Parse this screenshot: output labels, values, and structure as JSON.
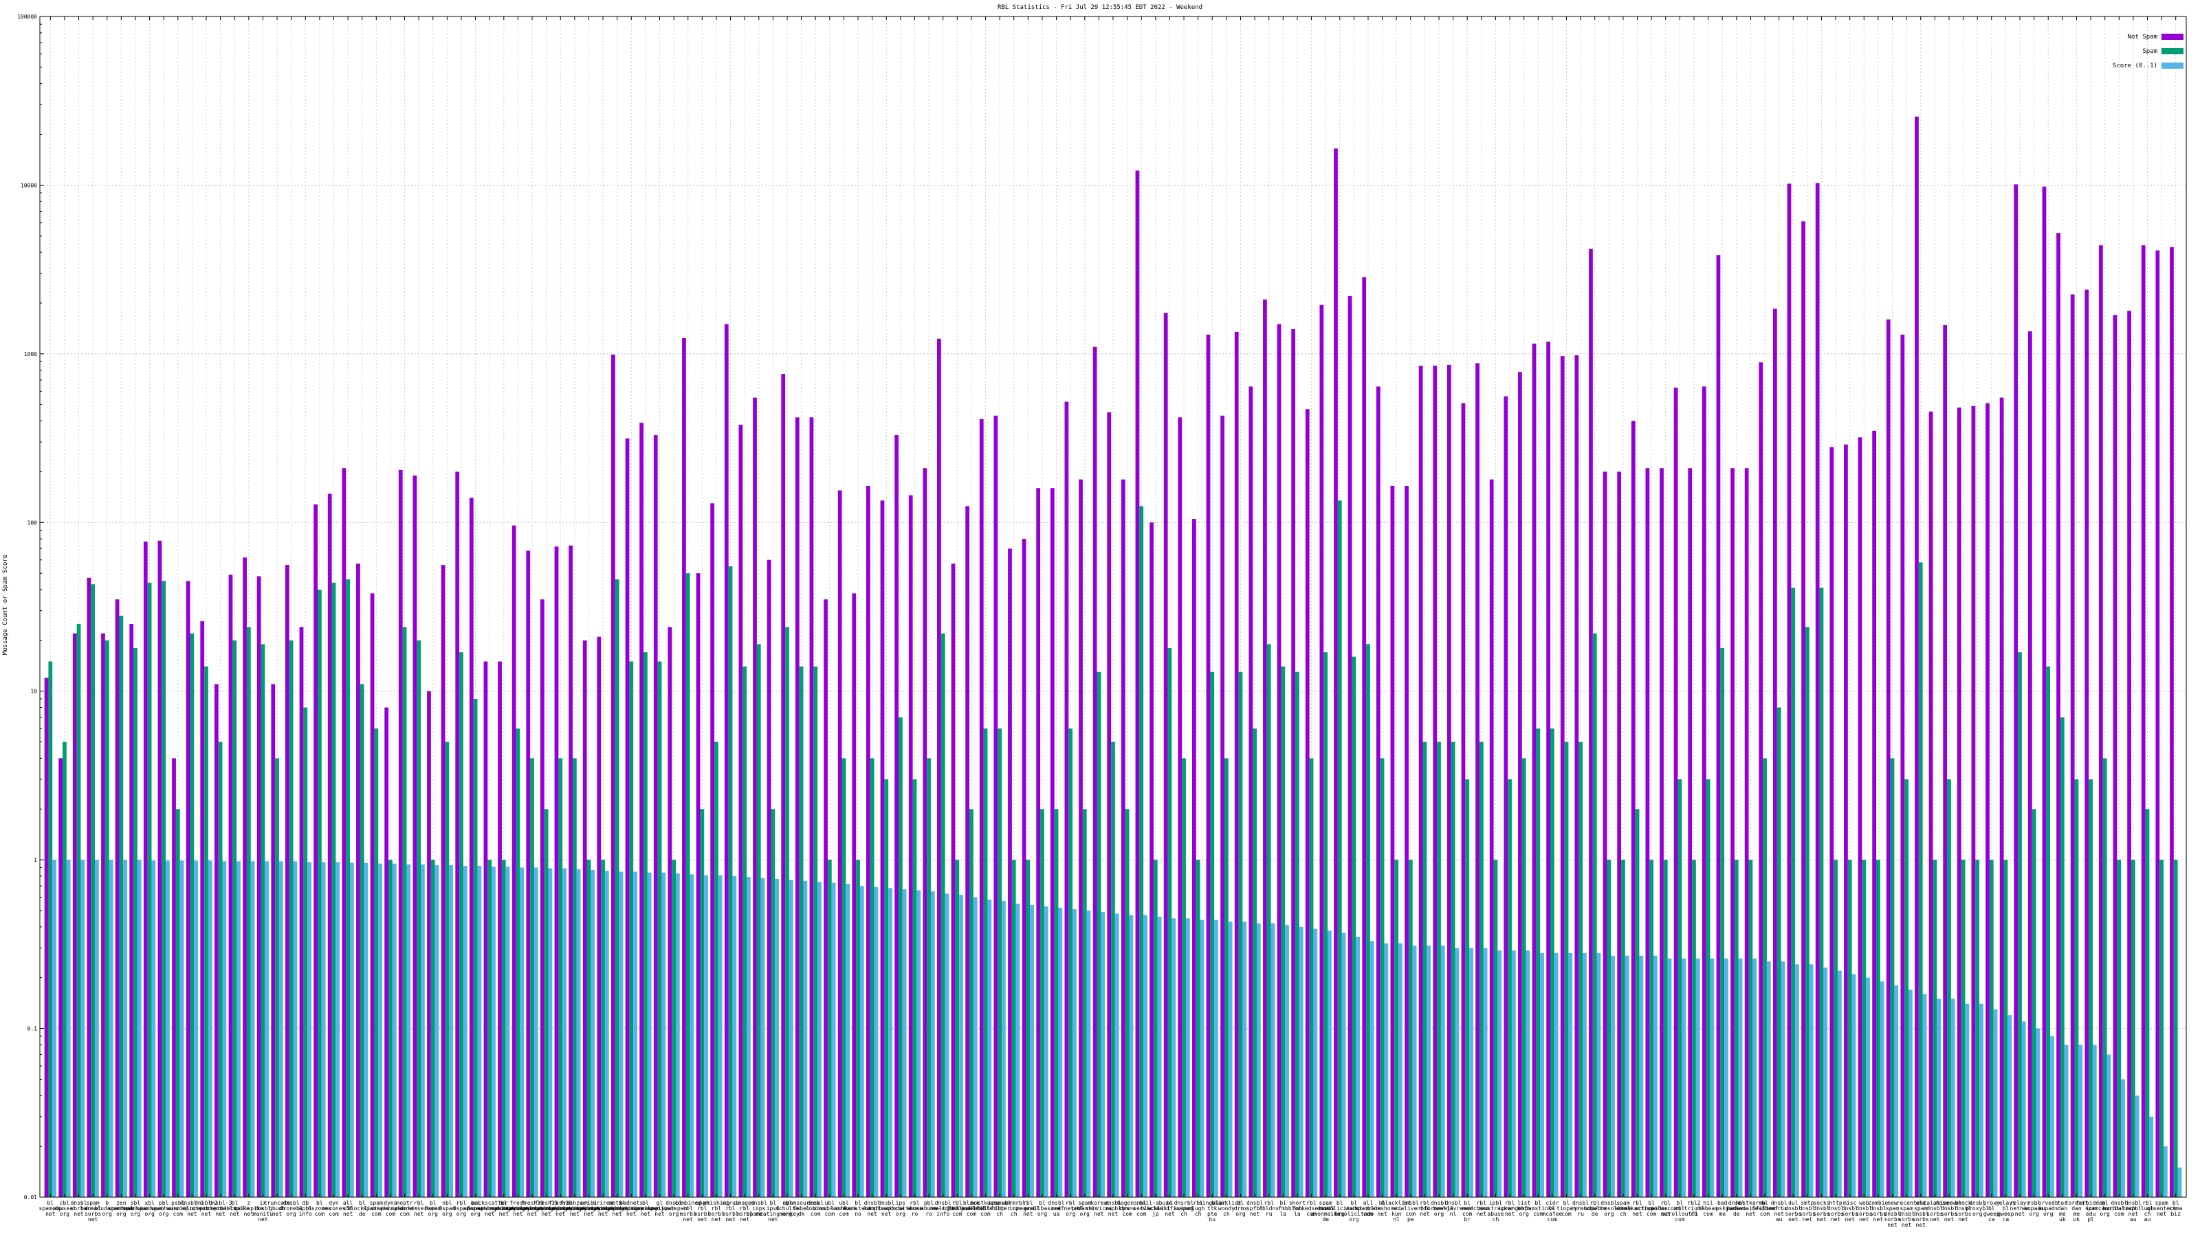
{
  "chart_data": {
    "type": "bar",
    "title": "RBL Statistics - Fri Jul 29 12:55:45 EDT 2022 - Weekend",
    "ylabel": "Message Count or Spam Score",
    "xlabel": "",
    "yscale": "log",
    "ylim": [
      0.01,
      100000
    ],
    "yticks": [
      "0.01",
      "0.1",
      "1",
      "10",
      "100",
      "1000",
      "10000",
      "100000"
    ],
    "grid": true,
    "legend_position": "top-right",
    "series": [
      {
        "name": "Not Spam",
        "color": "#9400d3"
      },
      {
        "name": "Spam",
        "color": "#009e73"
      },
      {
        "name": "Score (0..1)",
        "color": "#56b4e9"
      }
    ],
    "notSpam": [
      12,
      4,
      22,
      47,
      22,
      35,
      25,
      77,
      78,
      4,
      45,
      26,
      11,
      49,
      62,
      48,
      11,
      56,
      24,
      128,
      148,
      210,
      57,
      38,
      8,
      205,
      190,
      10,
      56,
      200,
      140,
      15,
      15,
      96,
      68,
      35,
      72,
      73,
      20,
      21,
      990,
      315,
      390,
      330,
      24,
      1240,
      50,
      130,
      1500,
      380,
      550,
      60,
      760,
      420,
      420,
      35,
      155,
      38,
      165,
      135,
      330,
      145,
      210,
      1230,
      57,
      125,
      410,
      430,
      70,
      80,
      160,
      160,
      520,
      180,
      1100,
      450,
      180,
      12200,
      100,
      1750,
      420,
      105,
      1300,
      430,
      1350,
      640,
      2100,
      1500,
      1400,
      470,
      1950,
      16500,
      2200,
      2850,
      640,
      165,
      165,
      850,
      850,
      860,
      510,
      880,
      180,
      560,
      780,
      1150,
      1180,
      970,
      980,
      4200,
      200,
      200,
      400,
      210,
      210,
      630,
      210,
      640,
      3850,
      210,
      210,
      890,
      1850,
      10200,
      6100,
      10300,
      280,
      290,
      320,
      350,
      1600,
      1300,
      25500,
      455,
      1480,
      480,
      490,
      510,
      550,
      10100,
      1360,
      9800,
      5200,
      2250,
      2400,
      4400,
      1700,
      1800,
      4400,
      4100,
      4300
    ],
    "spam": [
      15,
      5,
      25,
      43,
      20,
      28,
      18,
      44,
      45,
      2,
      22,
      14,
      5,
      20,
      24,
      19,
      4,
      20,
      8,
      40,
      44,
      46,
      11,
      6,
      1,
      24,
      20,
      1,
      5,
      17,
      9,
      1,
      1,
      6,
      4,
      2,
      4,
      4,
      1,
      1,
      46,
      15,
      17,
      15,
      1,
      50,
      2,
      5,
      55,
      14,
      19,
      2,
      24,
      14,
      14,
      1,
      4,
      1,
      4,
      3,
      7,
      3,
      4,
      22,
      1,
      2,
      6,
      6,
      1,
      1,
      2,
      2,
      6,
      2,
      13,
      5,
      2,
      125,
      1,
      18,
      4,
      1,
      13,
      4,
      13,
      6,
      19,
      14,
      13,
      4,
      17,
      135,
      16,
      19,
      4,
      1,
      1,
      5,
      5,
      5,
      3,
      5,
      1,
      3,
      4,
      6,
      6,
      5,
      5,
      22,
      1,
      1,
      2,
      1,
      1,
      3,
      1,
      3,
      18,
      1,
      1,
      4,
      8,
      41,
      24,
      41,
      1,
      1,
      1,
      1,
      4,
      3,
      58,
      1,
      3,
      1,
      1,
      1,
      1,
      17,
      2,
      14,
      7,
      3,
      3,
      4,
      1,
      1,
      2,
      1,
      1
    ],
    "score": [
      1,
      1,
      1,
      1,
      1,
      1,
      1,
      0.99,
      0.99,
      0.99,
      0.99,
      0.99,
      0.98,
      0.98,
      0.98,
      0.98,
      0.98,
      0.98,
      0.97,
      0.97,
      0.97,
      0.96,
      0.96,
      0.95,
      0.95,
      0.94,
      0.94,
      0.93,
      0.93,
      0.92,
      0.92,
      0.91,
      0.91,
      0.9,
      0.9,
      0.89,
      0.89,
      0.88,
      0.87,
      0.86,
      0.85,
      0.85,
      0.84,
      0.84,
      0.83,
      0.82,
      0.81,
      0.81,
      0.8,
      0.79,
      0.78,
      0.77,
      0.76,
      0.75,
      0.74,
      0.73,
      0.72,
      0.7,
      0.69,
      0.68,
      0.67,
      0.66,
      0.65,
      0.63,
      0.62,
      0.6,
      0.58,
      0.57,
      0.55,
      0.54,
      0.53,
      0.52,
      0.51,
      0.5,
      0.49,
      0.48,
      0.47,
      0.47,
      0.46,
      0.45,
      0.45,
      0.44,
      0.44,
      0.43,
      0.43,
      0.42,
      0.42,
      0.41,
      0.4,
      0.39,
      0.38,
      0.37,
      0.35,
      0.33,
      0.32,
      0.32,
      0.31,
      0.31,
      0.31,
      0.3,
      0.3,
      0.3,
      0.29,
      0.29,
      0.29,
      0.28,
      0.28,
      0.28,
      0.28,
      0.28,
      0.27,
      0.27,
      0.27,
      0.27,
      0.26,
      0.26,
      0.26,
      0.26,
      0.26,
      0.26,
      0.26,
      0.25,
      0.25,
      0.24,
      0.24,
      0.23,
      0.22,
      0.21,
      0.2,
      0.19,
      0.18,
      0.17,
      0.16,
      0.15,
      0.15,
      0.14,
      0.14,
      0.13,
      0.12,
      0.11,
      0.1,
      0.09,
      0.08,
      0.08,
      0.08,
      0.07,
      0.05,
      0.04,
      0.03,
      0.02,
      0.015
    ],
    "categories": [
      "bl.spamcop.net",
      "cbl.abuseat.org",
      "dnsbl.sorbs.net",
      "spam.dnsbl.sorbs.net",
      "b.barracudacentral.org",
      "zen.spamhaus.org",
      "sbl.spamhaus.org",
      "xbl.spamhaus.org",
      "pbl.spamhaus.org",
      "psbl.surriel.com",
      "dnsbl-1.uceprotect.net",
      "dnsbl-2.uceprotect.net",
      "dnsbl-3.uceprotect.net",
      "bl.mailspike.net",
      "z.mailspike.net",
      "ix.dnsbl.manitu.net",
      "truncate.gbudb.net",
      "dnsbl.dronebl.org",
      "db.wpbl.info",
      "bl.nszones.com",
      "dyn.nszones.com",
      "all.s5h.net",
      "bl.blocklist.de",
      "spam.spamrats.com",
      "dyna.spamrats.com",
      "noptr.spamrats.com",
      "rbl.interserver.net",
      "bl.0spam.org",
      "nbl.0spam.org",
      "rbl.0spam.org",
      "url.0spam.org",
      "backscatter.spameatingmonkey.net",
      "bl.spameatingmonkey.net",
      "fresh.spameatingmonkey.net",
      "fresh10.spameatingmonkey.net",
      "fresh15.spameatingmonkey.net",
      "fresh30.spameatingmonkey.net",
      "freshzero.spameatingmonkey.net",
      "uribl.spameatingmonkey.net",
      "urired.spameatingmonkey.net",
      "netbl.spameatingmonkey.net",
      "badnets.spameatingmonkey.net",
      "bl.suomispam.net",
      "gl.suomispam.net",
      "dnsbl.justspam.org",
      "combined.rbl.msrbl.net",
      "spam.rbl.msrbl.net",
      "phishing.rbl.msrbl.net",
      "virus.rbl.msrbl.net",
      "images.rbl.msrbl.net",
      "dnsbl.inps.de",
      "bl.ipv6.spameatingmonkey.net",
      "rbl.schulte.org",
      "spamsources.fabel.dk",
      "dnsbl.cobion.com",
      "ubl.unsubscore.com",
      "ubl.lashback.com",
      "bl.konstant.no",
      "dnsbl.kempt.net",
      "dnsbl.anticaptcha.net",
      "ips.backscatterer.org",
      "rbl.abuse.ro",
      "pbl.abuse.ro",
      "dnsbl.rv-soft.info",
      "rbl.realtimeblacklist.com",
      "black.junkemailfilter.com",
      "hostkarma.junkemailfilter.com",
      "spamrbl.imp.ch",
      "wormrbl.imp.ch",
      "rbl.megarbl.net",
      "bl.emailbasura.org",
      "dnsbl.net.ua",
      "rbl.efnetrbl.org",
      "spam.pedantic.org",
      "korea.services.net",
      "dnsbl.zapbl.net",
      "bogons.cymru.com",
      "rbl.dns-servicios.com",
      "mail-abuse.blacklist.jp",
      "bl.scientificspam.net",
      "dnsrbl.swinog.ch",
      "rbl.lugh.ch",
      "singular.ttk.pte.hu",
      "blacklist.woody.ch",
      "bl.drmx.org",
      "dnsbl.spfbl.net",
      "rbl.rbldns.ru",
      "bl.fmb.la",
      "short.fmb.la",
      "rbl.blockedservers.com",
      "spam.dnsbl.anonmails.de",
      "bl.nosolicitado.org",
      "bl.worst.nosolicitado.org",
      "all.spamrats.com",
      "bl.blueshore.net",
      "blacklist.sci.kun.nl",
      "dnsbl.calivent.com.pe",
      "rbl.tdk.net",
      "dnsbl.tornevall.org",
      "dnsbl.beetjevreemd.nl",
      "bl.mav.com.br",
      "rbl.choon.net",
      "ipbl.zeustracker.abuse.ch",
      "rbl.iprange.net",
      "list.bbfh.org",
      "bl.spamstinks.com",
      "cidr.bl.mcafee.com",
      "bl.tiopan.com",
      "dnsbl.rymsho.ru",
      "rbl.schulte.de",
      "dnsbl.openresolvers.org",
      "spam.abuse.ch",
      "rbl.talkactive.net",
      "bl.octopusdns.com",
      "rbl.polarcomm.net",
      "bl.rbl.scrolloutf1.com",
      "rbl2.triumf.ca",
      "hil.habeas.com",
      "bad.psky.me",
      "dnsbl.madavi.de",
      "hostkarma.junkemailfilter.net",
      "bl.deadbeef.com",
      "dnsbl.sorbs.net.au",
      "dul.dnsbl.sorbs.net",
      "smtp.dnsbl.sorbs.net",
      "socks.dnsbl.sorbs.net",
      "http.dnsbl.sorbs.net",
      "misc.dnsbl.sorbs.net",
      "web.dnsbl.sorbs.net",
      "zombie.dnsbl.sorbs.net",
      "new.spam.dnsbl.sorbs.net",
      "recent.spam.dnsbl.sorbs.net",
      "old.spam.dnsbl.sorbs.net",
      "escalations.dnsbl.sorbs.net",
      "noserver.dnsbl.sorbs.net",
      "block.dnsbl.sorbs.net",
      "dnsbl.proxybl.org",
      "proxy.bl.gweep.ca",
      "relays.bl.gweep.ca",
      "relays.nether.net",
      "rsbl.aupads.org",
      "orvedb.aupads.org",
      "tor.dan.me.uk",
      "torexit.dan.me.uk",
      "forbidden.icm.edu.pl",
      "bl.spamcannibal.org",
      "dnsbl.burnt-tech.com",
      "dnsbl.zapbl.net.au",
      "rbl.lugh.ch.au",
      "spam.olsentech.net",
      "bl.csma.biz"
    ]
  },
  "legend": {
    "not_spam": "Not Spam",
    "spam": "Spam",
    "score": "Score (0..1)"
  }
}
